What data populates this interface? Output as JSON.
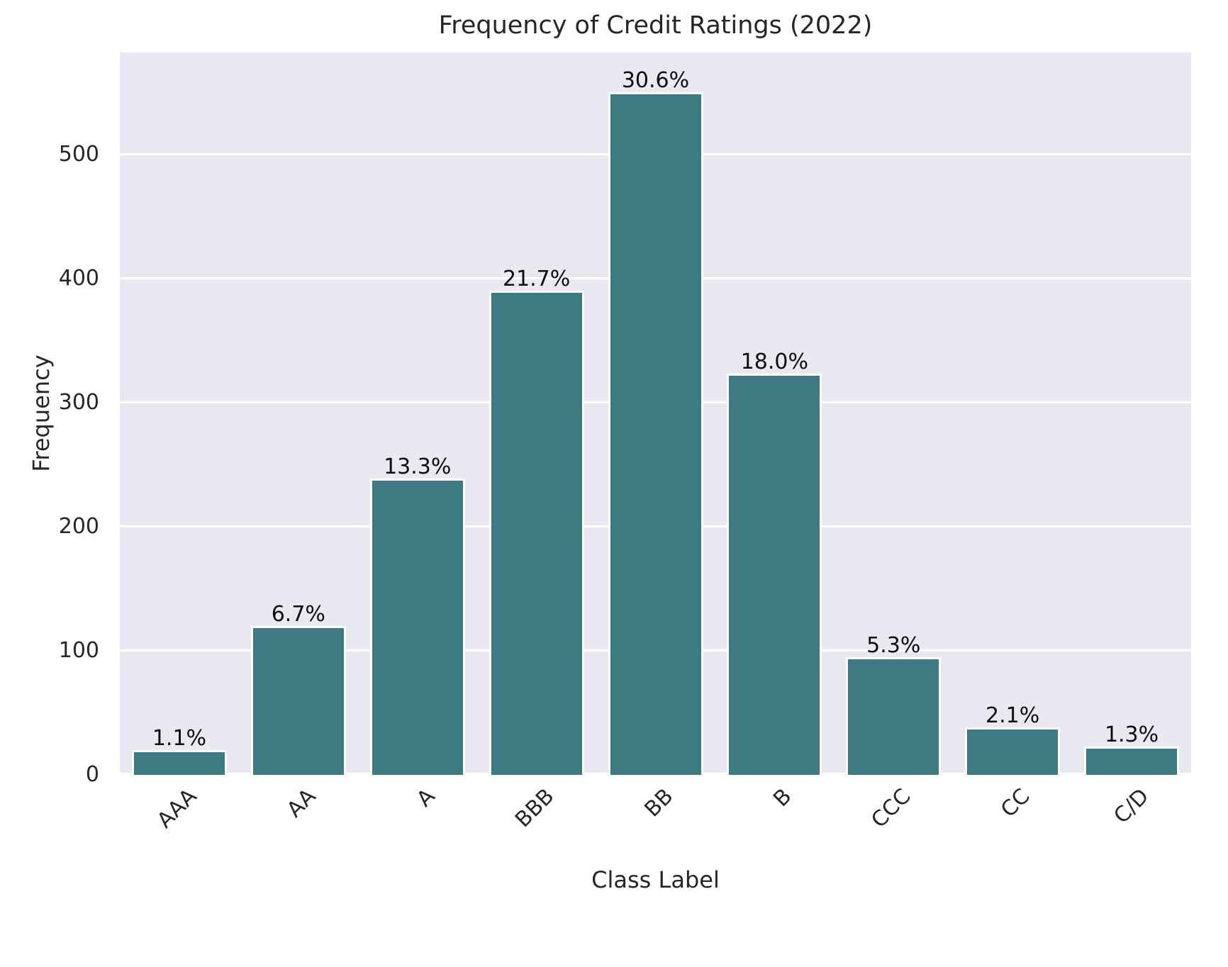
{
  "chart_data": {
    "type": "bar",
    "title": "Frequency of Credit Ratings (2022)",
    "xlabel": "Class Label",
    "ylabel": "Frequency",
    "categories": [
      "AAA",
      "AA",
      "A",
      "BBB",
      "BB",
      "B",
      "CCC",
      "CC",
      "C/D"
    ],
    "values": [
      20,
      120,
      239,
      390,
      550,
      323,
      95,
      38,
      23
    ],
    "bar_labels": [
      "1.1%",
      "6.7%",
      "13.3%",
      "21.7%",
      "30.6%",
      "18.0%",
      "5.3%",
      "2.1%",
      "1.3%"
    ],
    "yticks": [
      0,
      100,
      200,
      300,
      400,
      500
    ],
    "ylim": [
      0,
      582
    ],
    "grid": true,
    "legend": "none",
    "colors": {
      "bar_fill": "#3d7a81",
      "bar_edge": "#ffffff",
      "plot_background": "#e9e9f1",
      "gridline": "#ffffff",
      "text": "#262626",
      "figure_background": "#ffffff"
    }
  }
}
